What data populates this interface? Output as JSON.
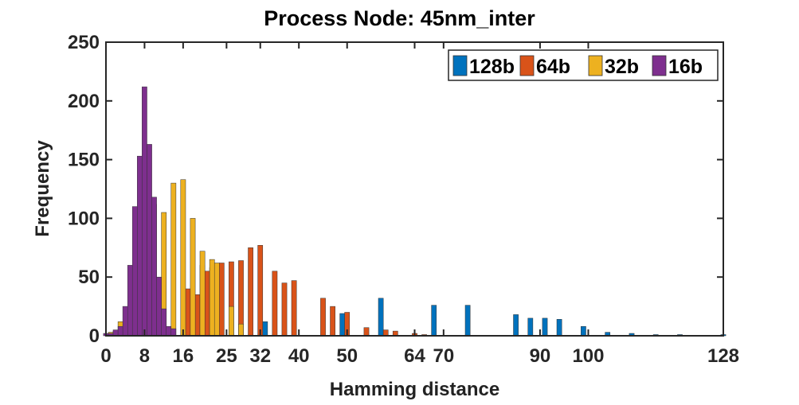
{
  "chart_data": {
    "type": "bar",
    "title": "Process Node: 45nm_inter",
    "xlabel": "Hamming distance",
    "ylabel": "Frequency",
    "xlim": [
      0,
      128
    ],
    "ylim": [
      0,
      250
    ],
    "xticks": [
      0,
      8,
      16,
      25,
      32,
      40,
      50,
      64,
      70,
      90,
      100,
      128
    ],
    "yticks": [
      0,
      50,
      100,
      150,
      200,
      250
    ],
    "legend_position": "top-right",
    "series": [
      {
        "name": "128b",
        "color": "#0072BD",
        "points": [
          [
            18,
            10
          ],
          [
            28,
            10
          ],
          [
            33,
            12
          ],
          [
            49,
            19
          ],
          [
            57,
            32
          ],
          [
            68,
            26
          ],
          [
            75,
            26
          ],
          [
            85,
            18
          ],
          [
            88,
            15
          ],
          [
            91,
            15
          ],
          [
            94,
            14
          ],
          [
            99,
            8
          ],
          [
            104,
            3
          ],
          [
            109,
            2
          ],
          [
            114,
            1
          ],
          [
            119,
            1
          ],
          [
            128,
            1
          ]
        ]
      },
      {
        "name": "64b",
        "color": "#D95319",
        "points": [
          [
            17,
            40
          ],
          [
            19,
            35
          ],
          [
            20,
            60
          ],
          [
            21,
            55
          ],
          [
            22,
            58
          ],
          [
            24,
            62
          ],
          [
            26,
            63
          ],
          [
            28,
            64
          ],
          [
            30,
            75
          ],
          [
            32,
            77
          ],
          [
            35,
            55
          ],
          [
            37,
            45
          ],
          [
            39,
            47
          ],
          [
            45,
            32
          ],
          [
            47,
            25
          ],
          [
            50,
            20
          ],
          [
            54,
            7
          ],
          [
            58,
            5
          ],
          [
            60,
            4
          ],
          [
            64,
            2
          ],
          [
            66,
            1
          ]
        ]
      },
      {
        "name": "32b",
        "color": "#EDB120",
        "points": [
          [
            1,
            3
          ],
          [
            2,
            4
          ],
          [
            3,
            12
          ],
          [
            7,
            100
          ],
          [
            9,
            100
          ],
          [
            10,
            112
          ],
          [
            12,
            105
          ],
          [
            14,
            130
          ],
          [
            16,
            133
          ],
          [
            18,
            100
          ],
          [
            20,
            72
          ],
          [
            22,
            65
          ],
          [
            23,
            62
          ],
          [
            26,
            25
          ],
          [
            28,
            10
          ]
        ]
      },
      {
        "name": "16b",
        "color": "#7E2F8E",
        "points": [
          [
            0,
            2
          ],
          [
            1,
            2
          ],
          [
            2,
            5
          ],
          [
            3,
            8
          ],
          [
            4,
            25
          ],
          [
            5,
            60
          ],
          [
            6,
            110
          ],
          [
            7,
            153
          ],
          [
            8,
            212
          ],
          [
            9,
            163
          ],
          [
            10,
            118
          ],
          [
            11,
            50
          ],
          [
            12,
            23
          ],
          [
            13,
            8
          ],
          [
            14,
            6
          ]
        ]
      }
    ]
  }
}
